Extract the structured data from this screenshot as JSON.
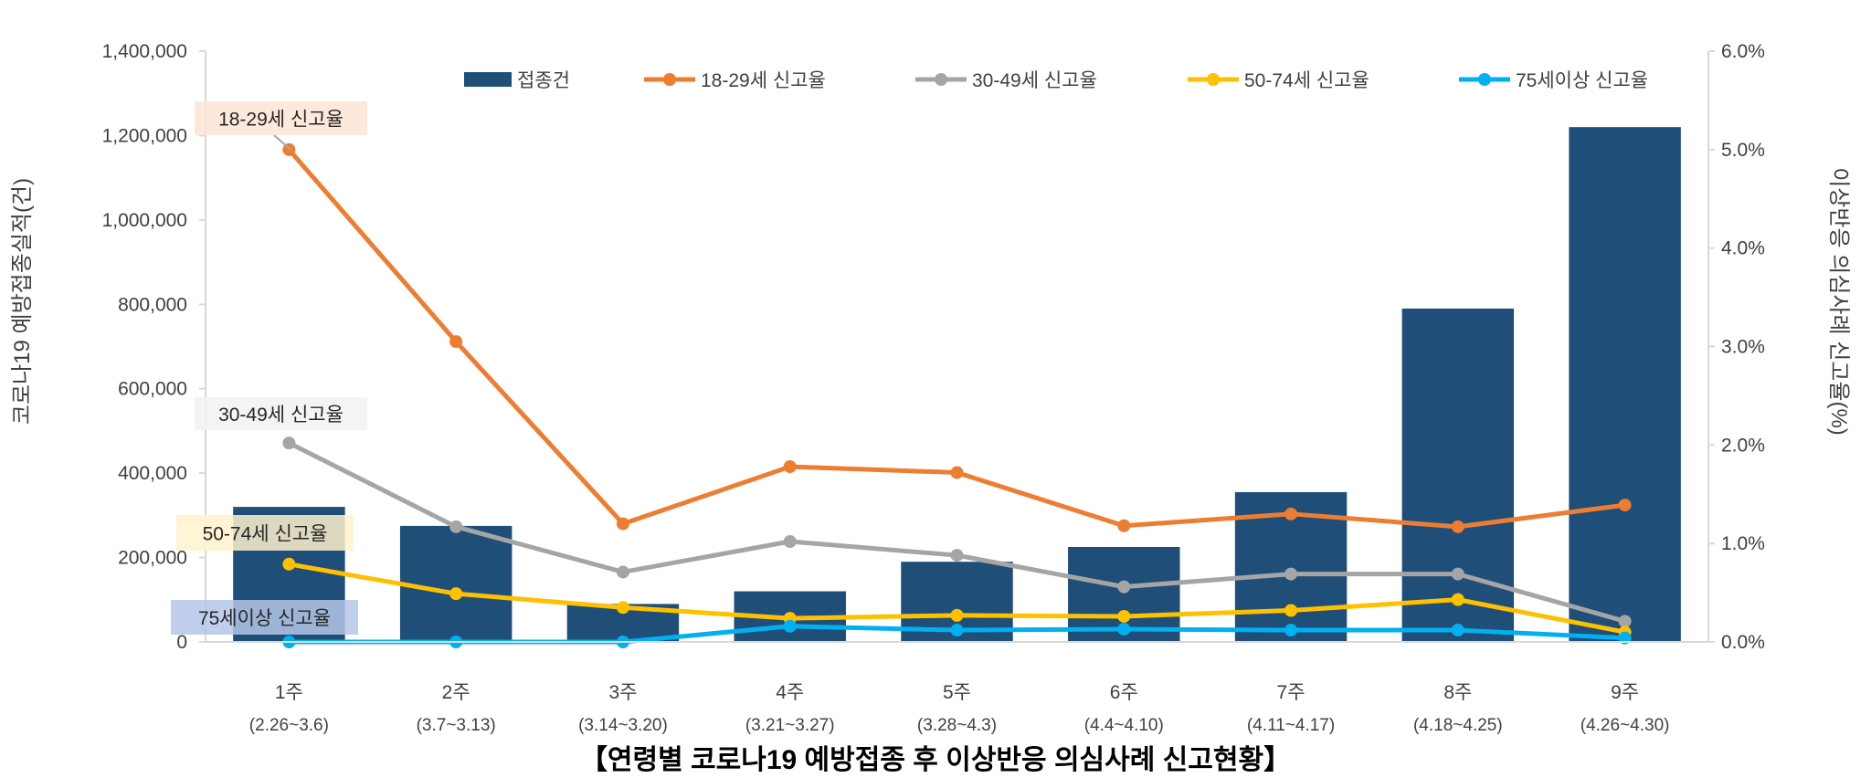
{
  "chart_data": {
    "type": "bar+line",
    "title": "【연령별 코로나19 예방접종 후 이상반응 의심사례 신고현황】",
    "ylabel_left": "코로나19 예방접종실적(건)",
    "ylabel_right": "이상반응 의심사례 신고율(%)",
    "ylim_left": [
      0,
      1400000
    ],
    "ylim_right": [
      0,
      6.0
    ],
    "left_ticks": [
      "0",
      "200,000",
      "400,000",
      "600,000",
      "800,000",
      "1,000,000",
      "1,200,000",
      "1,400,000"
    ],
    "right_ticks": [
      "0.0%",
      "1.0%",
      "2.0%",
      "3.0%",
      "4.0%",
      "5.0%",
      "6.0%"
    ],
    "categories": [
      "1주",
      "2주",
      "3주",
      "4주",
      "5주",
      "6주",
      "7주",
      "8주",
      "9주"
    ],
    "category_dates": [
      "(2.26~3.6)",
      "(3.7~3.13)",
      "(3.14~3.20)",
      "(3.21~3.27)",
      "(3.28~4.3)",
      "(4.4~4.10)",
      "(4.11~4.17)",
      "(4.18~4.25)",
      "(4.26~4.30)"
    ],
    "bars": {
      "name": "접종건",
      "color": "#1f4e79",
      "axis": "left",
      "values": [
        320000,
        275000,
        90000,
        120000,
        190000,
        225000,
        355000,
        790000,
        1220000
      ]
    },
    "series": [
      {
        "name": "18-29세 신고율",
        "color": "#ed7d31",
        "axis": "right",
        "values": [
          5.0,
          3.05,
          1.2,
          1.78,
          1.72,
          1.18,
          1.3,
          1.17,
          1.39
        ]
      },
      {
        "name": "30-49세 신고율",
        "color": "#a5a5a5",
        "axis": "right",
        "values": [
          2.02,
          1.17,
          0.71,
          1.02,
          0.88,
          0.56,
          0.69,
          0.69,
          0.21
        ]
      },
      {
        "name": "50-74세 신고율",
        "color": "#ffc000",
        "axis": "right",
        "values": [
          0.79,
          0.49,
          0.35,
          0.24,
          0.27,
          0.26,
          0.32,
          0.43,
          0.1
        ]
      },
      {
        "name": "75세이상 신고율",
        "color": "#00b0f0",
        "axis": "right",
        "values": [
          0.0,
          0.0,
          0.0,
          0.16,
          0.12,
          0.13,
          0.12,
          0.12,
          0.04
        ]
      }
    ],
    "annotations": [
      {
        "text": "18-29세 신고율",
        "bg": "#fbe5d6"
      },
      {
        "text": "30-49세 신고율",
        "bg": "#f2f2f2"
      },
      {
        "text": "50-74세 신고율",
        "bg": "#fff2cc"
      },
      {
        "text": "75세이상 신고율",
        "bg": "#b4c7e7"
      }
    ],
    "legend": "top"
  }
}
